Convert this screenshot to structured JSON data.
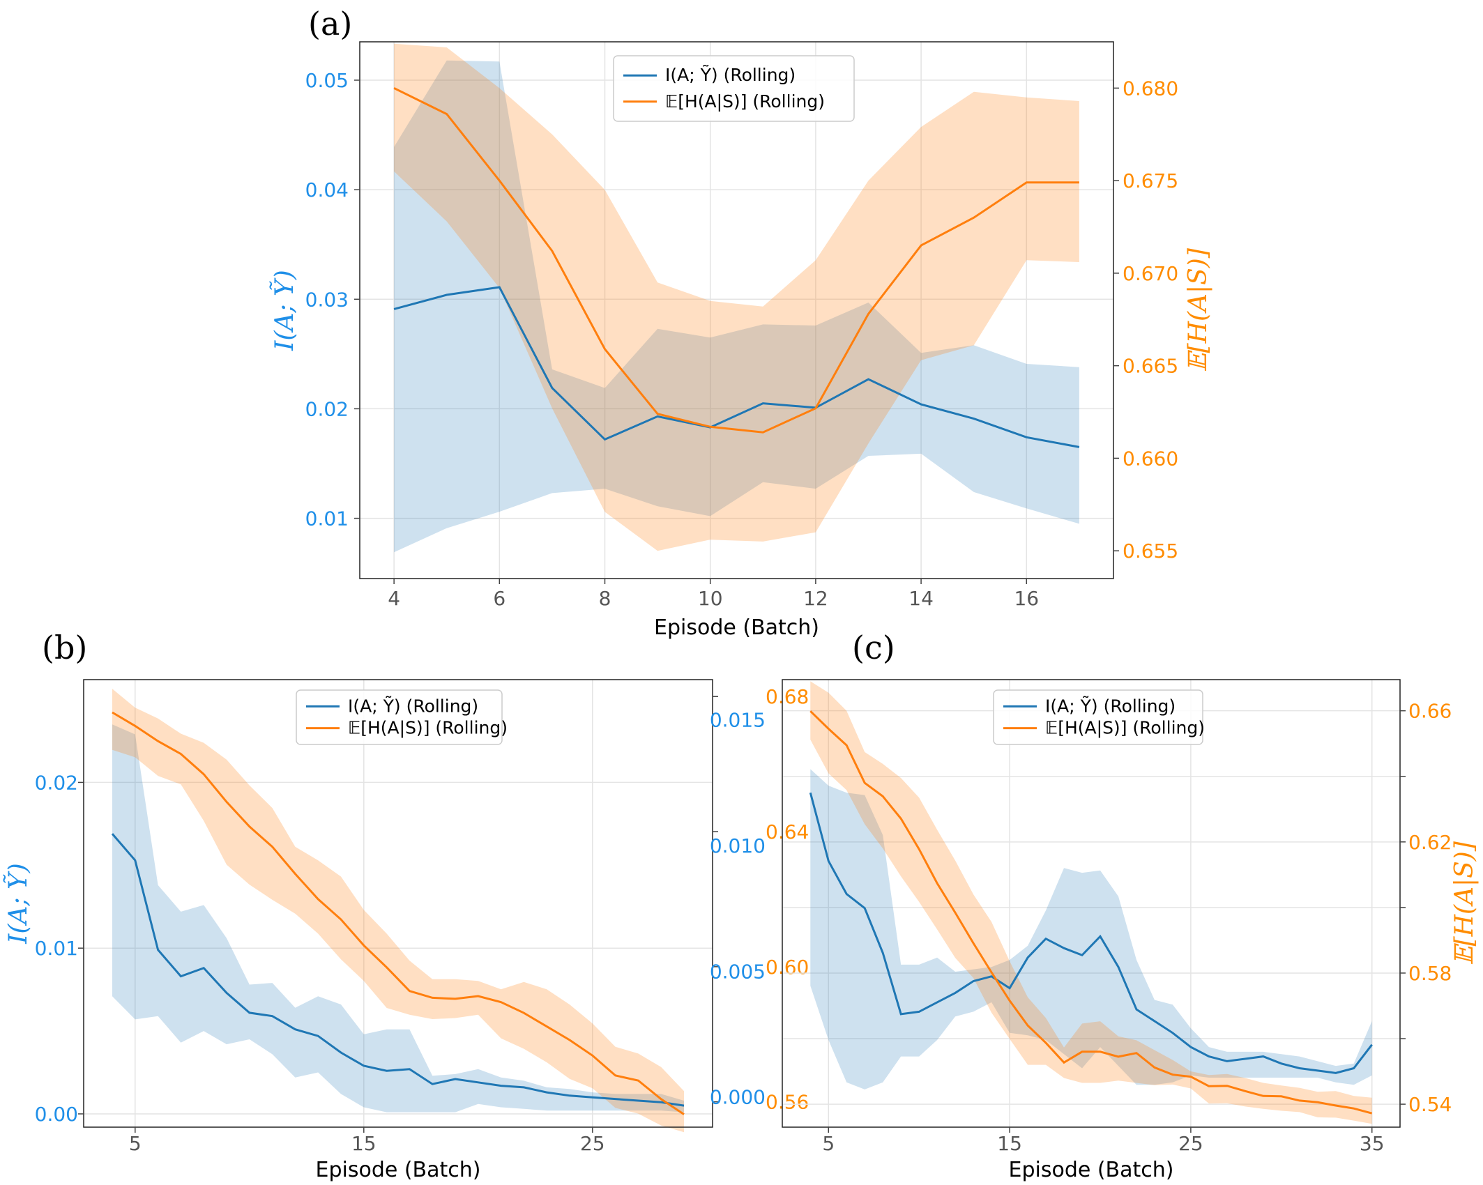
{
  "colors": {
    "series1": "#1f77b4",
    "series2": "#ff7f0e",
    "left_axis": "#1f8fe8",
    "right_axis": "#ff8c00"
  },
  "chart_data": [
    {
      "panel": "(a)",
      "type": "line",
      "xlabel": "Episode (Batch)",
      "ylabel_left": "I(A; Ỹ)",
      "ylabel_right": "𝔼[H(A|S)]",
      "xlim": [
        3.35,
        17.65
      ],
      "ylim_left": [
        0.0045,
        0.0535
      ],
      "ylim_right": [
        0.6535,
        0.6825
      ],
      "xticks": [
        4,
        6,
        8,
        10,
        12,
        14,
        16
      ],
      "xtick_labels": [
        "4",
        "6",
        "8",
        "10",
        "12",
        "14",
        "16"
      ],
      "yticks_left": [
        0.01,
        0.02,
        0.03,
        0.04,
        0.05
      ],
      "ytick_labels_left": [
        "0.01",
        "0.02",
        "0.03",
        "0.04",
        "0.05"
      ],
      "yticks_right": [
        0.655,
        0.66,
        0.665,
        0.67,
        0.675,
        0.68
      ],
      "ytick_labels_right": [
        "0.655",
        "0.660",
        "0.665",
        "0.670",
        "0.675",
        "0.680"
      ],
      "legend": [
        "I(A; Ỹ) (Rolling)",
        "𝔼[H(A|S)] (Rolling)"
      ],
      "legend_position": "top-center",
      "series": [
        {
          "name": "I(A; Ỹ) (Rolling)",
          "axis": "left",
          "x": [
            4,
            5,
            6,
            7,
            8,
            9,
            10,
            11,
            12,
            13,
            14,
            15,
            16,
            17
          ],
          "values": [
            0.0291,
            0.0304,
            0.0311,
            0.0219,
            0.0172,
            0.0193,
            0.0183,
            0.0205,
            0.0201,
            0.0227,
            0.0204,
            0.0191,
            0.0174,
            0.0165
          ],
          "lower": [
            0.0069,
            0.0091,
            0.0106,
            0.0123,
            0.0127,
            0.0111,
            0.0102,
            0.0133,
            0.0127,
            0.0157,
            0.0159,
            0.0124,
            0.0109,
            0.0095
          ],
          "upper": [
            0.0439,
            0.0518,
            0.0517,
            0.0236,
            0.0219,
            0.0273,
            0.0265,
            0.0277,
            0.0276,
            0.0297,
            0.0251,
            0.0258,
            0.0241,
            0.0238
          ]
        },
        {
          "name": "𝔼[H(A|S)] (Rolling)",
          "axis": "right",
          "x": [
            4,
            5,
            6,
            7,
            8,
            9,
            10,
            11,
            12,
            13,
            14,
            15,
            16,
            17
          ],
          "values": [
            0.68,
            0.6786,
            0.675,
            0.6712,
            0.6659,
            0.6624,
            0.6617,
            0.6614,
            0.6627,
            0.6678,
            0.6715,
            0.673,
            0.6749,
            0.6749
          ],
          "lower": [
            0.6755,
            0.6728,
            0.6692,
            0.6627,
            0.6571,
            0.655,
            0.6556,
            0.6555,
            0.656,
            0.6608,
            0.6653,
            0.6661,
            0.6707,
            0.6706
          ],
          "upper": [
            0.6824,
            0.6822,
            0.68,
            0.6775,
            0.6745,
            0.6695,
            0.6685,
            0.6682,
            0.6707,
            0.675,
            0.6779,
            0.6798,
            0.6795,
            0.6793
          ]
        }
      ]
    },
    {
      "panel": "(b)",
      "type": "line",
      "xlabel": "Episode (Batch)",
      "ylabel_left": "I(A; Ỹ)",
      "ylabel_right": "",
      "xlim": [
        2.75,
        30.25
      ],
      "ylim_left": [
        -0.0008,
        0.0262
      ],
      "ylim_right": [
        0.5525,
        0.685
      ],
      "xticks": [
        5,
        15,
        25
      ],
      "xtick_labels": [
        "5",
        "15",
        "25"
      ],
      "yticks_left": [
        0.0,
        0.01,
        0.02
      ],
      "ytick_labels_left": [
        "0.00",
        "0.01",
        "0.02"
      ],
      "yticks_right": [
        0.56,
        0.6,
        0.64,
        0.68
      ],
      "ytick_labels_right": [
        "0.56",
        "0.60",
        "0.64",
        "0.68"
      ],
      "extra_axis": {
        "ylim": [
          -0.0012,
          0.0166
        ],
        "yticks": [
          0.0,
          0.005,
          0.01,
          0.015
        ],
        "ytick_labels": [
          "0.000",
          "0.005",
          "0.010",
          "0.015"
        ]
      },
      "legend": [
        "I(A; Ỹ) (Rolling)",
        "𝔼[H(A|S)] (Rolling)"
      ],
      "legend_position": "top-center",
      "series": [
        {
          "name": "I(A; Ỹ) (Rolling)",
          "axis": "left",
          "x": [
            4,
            5,
            6,
            7,
            8,
            9,
            10,
            11,
            12,
            13,
            14,
            15,
            16,
            17,
            18,
            19,
            20,
            21,
            22,
            23,
            24,
            25,
            26,
            27,
            28,
            29
          ],
          "values": [
            0.0169,
            0.0153,
            0.0099,
            0.0083,
            0.0088,
            0.0073,
            0.0061,
            0.0059,
            0.0051,
            0.0047,
            0.0037,
            0.0029,
            0.0026,
            0.0027,
            0.0018,
            0.0021,
            0.0019,
            0.0017,
            0.0016,
            0.0013,
            0.0011,
            0.001,
            0.0009,
            0.0008,
            0.0007,
            0.0005
          ],
          "lower": [
            0.0071,
            0.0057,
            0.0059,
            0.0043,
            0.005,
            0.0042,
            0.0045,
            0.0036,
            0.0022,
            0.0025,
            0.0012,
            0.0004,
            0.0001,
            0.0001,
            0.0001,
            0.0001,
            0.0006,
            0.0004,
            0.0003,
            0.0002,
            0.0002,
            0.0002,
            0.0002,
            0.0002,
            0.0002,
            0.0001
          ],
          "upper": [
            0.0235,
            0.0229,
            0.0138,
            0.0122,
            0.0126,
            0.0106,
            0.0078,
            0.0079,
            0.0064,
            0.0071,
            0.0066,
            0.0048,
            0.0051,
            0.0051,
            0.0023,
            0.0024,
            0.0027,
            0.0022,
            0.002,
            0.0016,
            0.0015,
            0.0013,
            0.0012,
            0.0012,
            0.0012,
            0.0008
          ]
        },
        {
          "name": "𝔼[H(A|S)] (Rolling)",
          "axis": "right",
          "x": [
            4,
            5,
            6,
            7,
            8,
            9,
            10,
            11,
            12,
            13,
            14,
            15,
            16,
            17,
            18,
            19,
            20,
            21,
            22,
            23,
            24,
            25,
            26,
            27,
            28,
            29
          ],
          "values": [
            0.6753,
            0.6713,
            0.6668,
            0.663,
            0.657,
            0.6488,
            0.6415,
            0.6355,
            0.6275,
            0.62,
            0.614,
            0.6063,
            0.5998,
            0.5928,
            0.5908,
            0.5905,
            0.5913,
            0.5895,
            0.5863,
            0.5823,
            0.5783,
            0.5737,
            0.5678,
            0.5663,
            0.5608,
            0.5563
          ],
          "lower": [
            0.6642,
            0.662,
            0.6565,
            0.654,
            0.6432,
            0.6302,
            0.6243,
            0.6198,
            0.6157,
            0.6098,
            0.6022,
            0.5958,
            0.5878,
            0.5858,
            0.5845,
            0.5848,
            0.5858,
            0.5788,
            0.5757,
            0.5717,
            0.5668,
            0.564,
            0.5582,
            0.5565,
            0.553,
            0.551
          ],
          "upper": [
            0.6823,
            0.6767,
            0.6735,
            0.669,
            0.6663,
            0.6613,
            0.6537,
            0.647,
            0.6355,
            0.6315,
            0.6267,
            0.6168,
            0.6098,
            0.6018,
            0.5963,
            0.5963,
            0.5958,
            0.5933,
            0.5955,
            0.5933,
            0.5888,
            0.5832,
            0.5763,
            0.5743,
            0.5703,
            0.5632
          ]
        }
      ]
    },
    {
      "panel": "(c)",
      "type": "line",
      "xlabel": "Episode (Batch)",
      "ylabel_left": "",
      "ylabel_right": "𝔼[H(A|S)]",
      "xlim": [
        2.45,
        36.55
      ],
      "ylim_left": [
        -0.0014,
        0.0176
      ],
      "ylim_right": [
        0.533,
        0.6695
      ],
      "xticks": [
        5,
        15,
        25,
        35
      ],
      "xtick_labels": [
        "5",
        "15",
        "25",
        "35"
      ],
      "yticks_left": [],
      "ytick_labels_left": [],
      "yticks_right": [
        0.54,
        0.56,
        0.58,
        0.6,
        0.62,
        0.64,
        0.66
      ],
      "ytick_labels_right": [
        "0.54",
        "",
        "0.58",
        "",
        "0.62",
        "",
        "0.66"
      ],
      "legend": [
        "I(A; Ỹ) (Rolling)",
        "𝔼[H(A|S)] (Rolling)"
      ],
      "legend_position": "top-center",
      "series": [
        {
          "name": "I(A; Ỹ) (Rolling)",
          "axis": "left",
          "x": [
            4,
            5,
            6,
            7,
            8,
            9,
            10,
            11,
            12,
            13,
            14,
            15,
            16,
            17,
            18,
            19,
            20,
            21,
            22,
            23,
            24,
            25,
            26,
            27,
            28,
            29,
            30,
            31,
            32,
            33,
            34,
            35
          ],
          "values": [
            0.0128,
            0.0099,
            0.0085,
            0.0079,
            0.006,
            0.0034,
            0.0035,
            0.0039,
            0.0043,
            0.0048,
            0.005,
            0.0045,
            0.0058,
            0.0066,
            0.0062,
            0.0059,
            0.0067,
            0.0054,
            0.0036,
            0.0031,
            0.0026,
            0.002,
            0.0016,
            0.0014,
            0.0015,
            0.0016,
            0.0013,
            0.0011,
            0.001,
            0.0009,
            0.0011,
            0.0021
          ],
          "lower": [
            0.0046,
            0.0023,
            0.0005,
            0.0002,
            0.0005,
            0.0016,
            0.0016,
            0.0023,
            0.0033,
            0.0035,
            0.0039,
            0.0026,
            0.0025,
            0.0023,
            0.0017,
            0.0011,
            0.002,
            0.0012,
            0.0004,
            0.0004,
            0.0005,
            0.0008,
            0.0007,
            0.0007,
            0.0007,
            0.0007,
            0.0007,
            0.0007,
            0.0007,
            0.0005,
            0.0004,
            0.0008
          ],
          "upper": [
            0.0138,
            0.0131,
            0.0128,
            0.0127,
            0.011,
            0.0055,
            0.0055,
            0.0058,
            0.0052,
            0.0053,
            0.0054,
            0.0057,
            0.0063,
            0.0078,
            0.0096,
            0.0094,
            0.0095,
            0.0084,
            0.0057,
            0.004,
            0.0038,
            0.0028,
            0.002,
            0.0018,
            0.0018,
            0.0018,
            0.0017,
            0.0016,
            0.0014,
            0.0012,
            0.0013,
            0.0031
          ]
        },
        {
          "name": "𝔼[H(A|S)] (Rolling)",
          "axis": "right",
          "x": [
            4,
            5,
            6,
            7,
            8,
            9,
            10,
            11,
            12,
            13,
            14,
            15,
            16,
            17,
            18,
            19,
            20,
            21,
            22,
            23,
            24,
            25,
            26,
            27,
            28,
            29,
            30,
            31,
            32,
            33,
            34,
            35
          ],
          "values": [
            0.6599,
            0.6545,
            0.6495,
            0.638,
            0.6339,
            0.6271,
            0.6178,
            0.6074,
            0.5984,
            0.5891,
            0.5802,
            0.5716,
            0.564,
            0.5587,
            0.5527,
            0.556,
            0.556,
            0.5545,
            0.5556,
            0.5512,
            0.549,
            0.5484,
            0.5455,
            0.5456,
            0.544,
            0.5425,
            0.5424,
            0.5411,
            0.5406,
            0.5396,
            0.5387,
            0.5372
          ],
          "lower": [
            0.6512,
            0.6409,
            0.6358,
            0.6254,
            0.618,
            0.6095,
            0.6017,
            0.5933,
            0.5846,
            0.5785,
            0.5679,
            0.5599,
            0.552,
            0.552,
            0.548,
            0.5465,
            0.5465,
            0.5472,
            0.5465,
            0.5458,
            0.546,
            0.5448,
            0.5402,
            0.5403,
            0.5393,
            0.5386,
            0.538,
            0.5376,
            0.536,
            0.5359,
            0.535,
            0.534
          ],
          "upper": [
            0.669,
            0.6655,
            0.66,
            0.6474,
            0.6438,
            0.6395,
            0.6335,
            0.6237,
            0.6143,
            0.604,
            0.5956,
            0.5836,
            0.5726,
            0.5663,
            0.5573,
            0.5646,
            0.5653,
            0.5607,
            0.5595,
            0.5565,
            0.5535,
            0.55,
            0.5489,
            0.5492,
            0.548,
            0.5465,
            0.5457,
            0.545,
            0.5438,
            0.544,
            0.5425,
            0.542
          ]
        }
      ]
    }
  ]
}
